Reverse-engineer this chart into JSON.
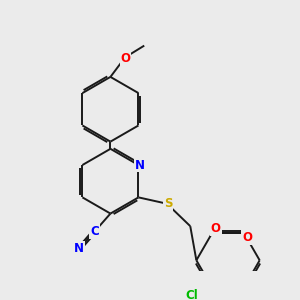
{
  "bg_color": "#ebebeb",
  "bond_color": "#1a1a1a",
  "bond_width": 1.4,
  "atom_colors": {
    "N": "#0000ff",
    "O": "#ff0000",
    "S": "#ccaa00",
    "Cl": "#00bb00",
    "C": "#0000ff"
  },
  "font_size": 8.5
}
